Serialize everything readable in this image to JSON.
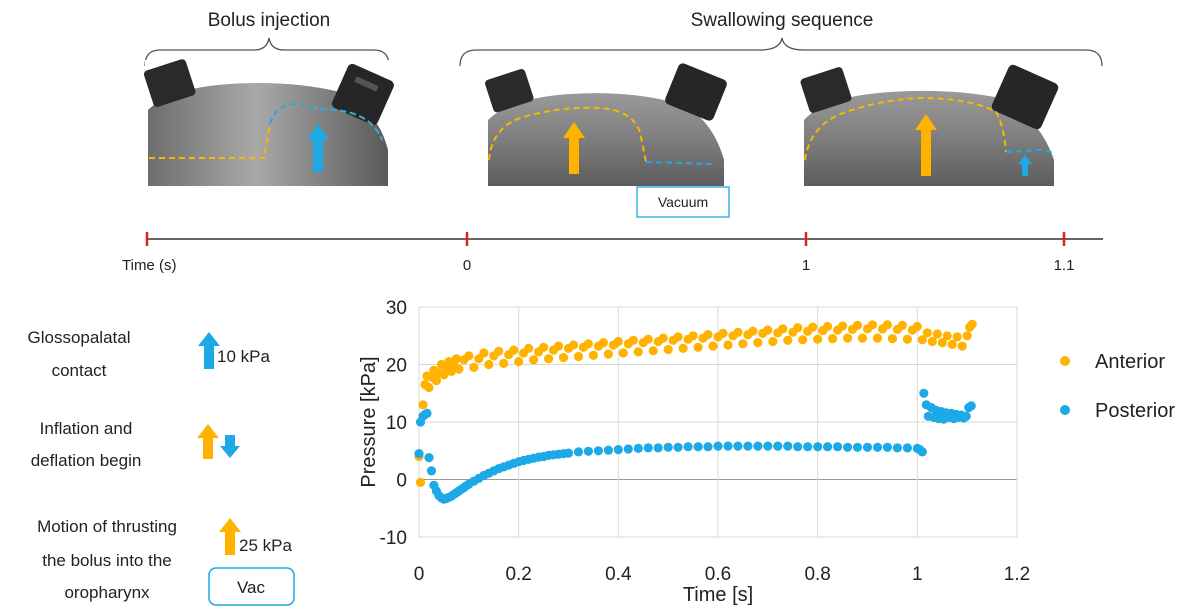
{
  "header": {
    "bolus_label": "Bolus injection",
    "swallow_label": "Swallowing sequence",
    "vacuum_label": "Vacuum"
  },
  "timeline": {
    "axis_label": "Time (s)",
    "ticks": [
      "0",
      "1",
      "1.1"
    ]
  },
  "legend_left": {
    "items": [
      {
        "lines": [
          "Glossopalatal",
          "contact"
        ],
        "value": "10 kPa",
        "icon": "blue-up-arrow-icon"
      },
      {
        "lines": [
          "Inflation and",
          "deflation begin"
        ],
        "value": "",
        "icon": "orange-up-blue-down-arrows-icon"
      },
      {
        "lines": [
          "Motion of thrusting",
          "the bolus into the",
          "oropharynx"
        ],
        "value": "25 kPa",
        "icon": "orange-up-arrow-icon"
      }
    ],
    "vac_label": "Vac"
  },
  "colors": {
    "anterior": "#FFB300",
    "posterior": "#1CA9E6",
    "tick_red": "#E02020"
  },
  "chart_data": {
    "type": "scatter",
    "title": "",
    "xlabel": "Time [s]",
    "ylabel": "Pressure [kPa]",
    "xlim": [
      0,
      1.2
    ],
    "ylim": [
      -10,
      30
    ],
    "xticks": [
      "0",
      "0.2",
      "0.4",
      "0.6",
      "0.8",
      "1",
      "1.2"
    ],
    "yticks": [
      "-10",
      "0",
      "10",
      "20",
      "30"
    ],
    "grid": true,
    "legend": "right",
    "series": [
      {
        "name": "Anterior",
        "color": "#FFB300",
        "points": [
          [
            0.0,
            4.0
          ],
          [
            0.003,
            -0.5
          ],
          [
            0.008,
            13.0
          ],
          [
            0.012,
            16.5
          ],
          [
            0.016,
            18.0
          ],
          [
            0.02,
            16.0
          ],
          [
            0.025,
            17.8
          ],
          [
            0.03,
            19.0
          ],
          [
            0.035,
            17.2
          ],
          [
            0.04,
            18.5
          ],
          [
            0.045,
            20.0
          ],
          [
            0.05,
            18.2
          ],
          [
            0.055,
            19.5
          ],
          [
            0.06,
            20.5
          ],
          [
            0.065,
            18.8
          ],
          [
            0.07,
            20.2
          ],
          [
            0.075,
            21.0
          ],
          [
            0.08,
            19.2
          ],
          [
            0.09,
            20.8
          ],
          [
            0.1,
            21.5
          ],
          [
            0.11,
            19.5
          ],
          [
            0.12,
            21.0
          ],
          [
            0.13,
            22.0
          ],
          [
            0.14,
            20.0
          ],
          [
            0.15,
            21.5
          ],
          [
            0.16,
            22.3
          ],
          [
            0.17,
            20.2
          ],
          [
            0.18,
            21.7
          ],
          [
            0.19,
            22.5
          ],
          [
            0.2,
            20.5
          ],
          [
            0.21,
            22.0
          ],
          [
            0.22,
            22.8
          ],
          [
            0.23,
            20.8
          ],
          [
            0.24,
            22.2
          ],
          [
            0.25,
            23.0
          ],
          [
            0.26,
            21.0
          ],
          [
            0.27,
            22.5
          ],
          [
            0.28,
            23.2
          ],
          [
            0.29,
            21.2
          ],
          [
            0.3,
            22.8
          ],
          [
            0.31,
            23.4
          ],
          [
            0.32,
            21.4
          ],
          [
            0.33,
            23.0
          ],
          [
            0.34,
            23.6
          ],
          [
            0.35,
            21.6
          ],
          [
            0.36,
            23.2
          ],
          [
            0.37,
            23.8
          ],
          [
            0.38,
            21.8
          ],
          [
            0.39,
            23.4
          ],
          [
            0.4,
            24.0
          ],
          [
            0.41,
            22.0
          ],
          [
            0.42,
            23.6
          ],
          [
            0.43,
            24.2
          ],
          [
            0.44,
            22.2
          ],
          [
            0.45,
            23.8
          ],
          [
            0.46,
            24.4
          ],
          [
            0.47,
            22.4
          ],
          [
            0.48,
            24.0
          ],
          [
            0.49,
            24.6
          ],
          [
            0.5,
            22.6
          ],
          [
            0.51,
            24.2
          ],
          [
            0.52,
            24.8
          ],
          [
            0.53,
            22.8
          ],
          [
            0.54,
            24.4
          ],
          [
            0.55,
            25.0
          ],
          [
            0.56,
            23.0
          ],
          [
            0.57,
            24.6
          ],
          [
            0.58,
            25.2
          ],
          [
            0.59,
            23.2
          ],
          [
            0.6,
            24.8
          ],
          [
            0.61,
            25.4
          ],
          [
            0.62,
            23.4
          ],
          [
            0.63,
            25.0
          ],
          [
            0.64,
            25.6
          ],
          [
            0.65,
            23.6
          ],
          [
            0.66,
            25.2
          ],
          [
            0.67,
            25.8
          ],
          [
            0.68,
            23.8
          ],
          [
            0.69,
            25.4
          ],
          [
            0.7,
            26.0
          ],
          [
            0.71,
            24.0
          ],
          [
            0.72,
            25.5
          ],
          [
            0.73,
            26.2
          ],
          [
            0.74,
            24.2
          ],
          [
            0.75,
            25.6
          ],
          [
            0.76,
            26.4
          ],
          [
            0.77,
            24.3
          ],
          [
            0.78,
            25.8
          ],
          [
            0.79,
            26.5
          ],
          [
            0.8,
            24.4
          ],
          [
            0.81,
            25.9
          ],
          [
            0.82,
            26.6
          ],
          [
            0.83,
            24.5
          ],
          [
            0.84,
            26.0
          ],
          [
            0.85,
            26.7
          ],
          [
            0.86,
            24.6
          ],
          [
            0.87,
            26.1
          ],
          [
            0.88,
            26.8
          ],
          [
            0.89,
            24.6
          ],
          [
            0.9,
            26.2
          ],
          [
            0.91,
            26.9
          ],
          [
            0.92,
            24.6
          ],
          [
            0.93,
            26.2
          ],
          [
            0.94,
            26.9
          ],
          [
            0.95,
            24.5
          ],
          [
            0.96,
            26.1
          ],
          [
            0.97,
            26.8
          ],
          [
            0.98,
            24.4
          ],
          [
            0.99,
            26.0
          ],
          [
            1.0,
            26.6
          ],
          [
            1.01,
            24.3
          ],
          [
            1.02,
            25.5
          ],
          [
            1.03,
            24.0
          ],
          [
            1.04,
            25.3
          ],
          [
            1.05,
            23.8
          ],
          [
            1.06,
            25.0
          ],
          [
            1.07,
            23.5
          ],
          [
            1.08,
            24.8
          ],
          [
            1.09,
            23.2
          ],
          [
            1.1,
            25.0
          ],
          [
            1.105,
            26.5
          ],
          [
            1.11,
            27.0
          ]
        ]
      },
      {
        "name": "Posterior",
        "color": "#1CA9E6",
        "points": [
          [
            0.0,
            4.5
          ],
          [
            0.003,
            10.0
          ],
          [
            0.008,
            11.0
          ],
          [
            0.012,
            11.3
          ],
          [
            0.016,
            11.5
          ],
          [
            0.02,
            3.8
          ],
          [
            0.025,
            1.5
          ],
          [
            0.03,
            -1.0
          ],
          [
            0.035,
            -2.0
          ],
          [
            0.04,
            -2.8
          ],
          [
            0.045,
            -3.2
          ],
          [
            0.05,
            -3.4
          ],
          [
            0.055,
            -3.3
          ],
          [
            0.06,
            -3.1
          ],
          [
            0.065,
            -2.9
          ],
          [
            0.07,
            -2.6
          ],
          [
            0.075,
            -2.3
          ],
          [
            0.08,
            -2.0
          ],
          [
            0.085,
            -1.7
          ],
          [
            0.09,
            -1.4
          ],
          [
            0.095,
            -1.1
          ],
          [
            0.1,
            -0.8
          ],
          [
            0.11,
            -0.3
          ],
          [
            0.12,
            0.2
          ],
          [
            0.13,
            0.7
          ],
          [
            0.14,
            1.1
          ],
          [
            0.15,
            1.5
          ],
          [
            0.16,
            1.9
          ],
          [
            0.17,
            2.2
          ],
          [
            0.18,
            2.5
          ],
          [
            0.19,
            2.8
          ],
          [
            0.2,
            3.1
          ],
          [
            0.21,
            3.3
          ],
          [
            0.22,
            3.5
          ],
          [
            0.23,
            3.7
          ],
          [
            0.24,
            3.9
          ],
          [
            0.25,
            4.0
          ],
          [
            0.26,
            4.2
          ],
          [
            0.27,
            4.3
          ],
          [
            0.28,
            4.4
          ],
          [
            0.29,
            4.5
          ],
          [
            0.3,
            4.6
          ],
          [
            0.32,
            4.8
          ],
          [
            0.34,
            4.9
          ],
          [
            0.36,
            5.0
          ],
          [
            0.38,
            5.1
          ],
          [
            0.4,
            5.2
          ],
          [
            0.42,
            5.3
          ],
          [
            0.44,
            5.4
          ],
          [
            0.46,
            5.5
          ],
          [
            0.48,
            5.5
          ],
          [
            0.5,
            5.6
          ],
          [
            0.52,
            5.6
          ],
          [
            0.54,
            5.7
          ],
          [
            0.56,
            5.7
          ],
          [
            0.58,
            5.7
          ],
          [
            0.6,
            5.8
          ],
          [
            0.62,
            5.8
          ],
          [
            0.64,
            5.8
          ],
          [
            0.66,
            5.8
          ],
          [
            0.68,
            5.8
          ],
          [
            0.7,
            5.8
          ],
          [
            0.72,
            5.8
          ],
          [
            0.74,
            5.8
          ],
          [
            0.76,
            5.7
          ],
          [
            0.78,
            5.7
          ],
          [
            0.8,
            5.7
          ],
          [
            0.82,
            5.7
          ],
          [
            0.84,
            5.7
          ],
          [
            0.86,
            5.6
          ],
          [
            0.88,
            5.6
          ],
          [
            0.9,
            5.6
          ],
          [
            0.92,
            5.6
          ],
          [
            0.94,
            5.6
          ],
          [
            0.96,
            5.5
          ],
          [
            0.98,
            5.5
          ],
          [
            1.0,
            5.4
          ],
          [
            1.005,
            5.2
          ],
          [
            1.01,
            4.8
          ],
          [
            1.013,
            15.0
          ],
          [
            1.018,
            13.0
          ],
          [
            1.022,
            11.0
          ],
          [
            1.028,
            12.5
          ],
          [
            1.033,
            10.8
          ],
          [
            1.038,
            12.0
          ],
          [
            1.043,
            10.6
          ],
          [
            1.048,
            11.8
          ],
          [
            1.053,
            10.5
          ],
          [
            1.058,
            11.6
          ],
          [
            1.063,
            10.8
          ],
          [
            1.068,
            11.5
          ],
          [
            1.073,
            10.6
          ],
          [
            1.078,
            11.3
          ],
          [
            1.083,
            10.8
          ],
          [
            1.088,
            11.2
          ],
          [
            1.093,
            10.7
          ],
          [
            1.098,
            11.0
          ],
          [
            1.103,
            12.5
          ],
          [
            1.108,
            12.8
          ]
        ]
      }
    ]
  }
}
